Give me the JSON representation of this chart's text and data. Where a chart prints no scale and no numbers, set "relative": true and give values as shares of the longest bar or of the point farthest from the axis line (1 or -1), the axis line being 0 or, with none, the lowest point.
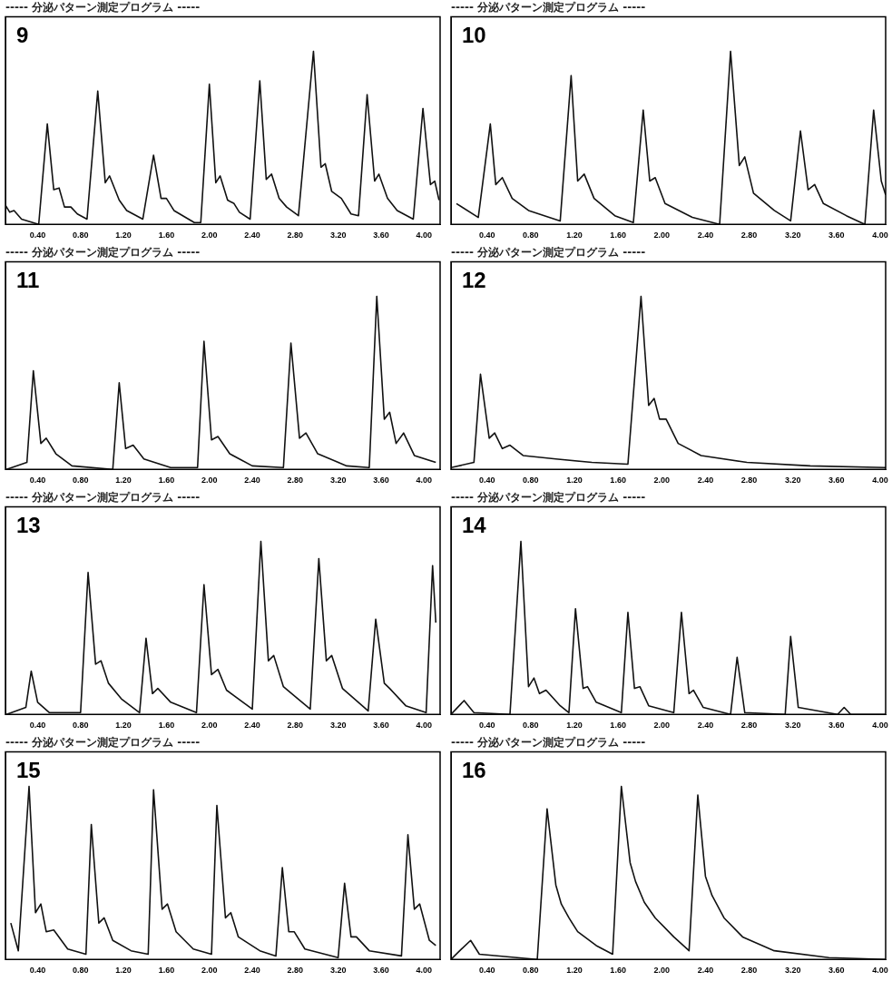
{
  "chart_data": [
    {
      "type": "line",
      "title": "----- 分泌パターン測定プログラム -----",
      "annotations": [
        "9"
      ],
      "relative": true,
      "grid": false,
      "legend": false,
      "marker": "none",
      "line_style": "solid",
      "tick_labels": "x",
      "xlim": [
        0.1,
        4.15
      ],
      "xticks": [
        {
          "value": 0.4,
          "label": "0.40"
        },
        {
          "value": 0.8,
          "label": "0.80"
        },
        {
          "value": 1.2,
          "label": "1.20"
        },
        {
          "value": 1.6,
          "label": "1.60"
        },
        {
          "value": 2,
          "label": "2.00"
        },
        {
          "value": 2.4,
          "label": "2.40"
        },
        {
          "value": 2.8,
          "label": "2.80"
        },
        {
          "value": 3.2,
          "label": "3.20"
        },
        {
          "value": 3.6,
          "label": "3.60"
        },
        {
          "value": 4,
          "label": "4.00"
        }
      ],
      "series": [
        {
          "color": "#111111",
          "x": [
            0.1,
            0.14,
            0.18,
            0.25,
            0.41,
            0.49,
            0.55,
            0.6,
            0.65,
            0.71,
            0.77,
            0.86,
            0.96,
            1.03,
            1.07,
            1.16,
            1.23,
            1.38,
            1.48,
            1.55,
            1.6,
            1.67,
            1.86,
            1.92,
            2,
            2.06,
            2.1,
            2.17,
            2.23,
            2.28,
            2.38,
            2.47,
            2.53,
            2.58,
            2.65,
            2.72,
            2.83,
            2.97,
            3.04,
            3.08,
            3.14,
            3.23,
            3.32,
            3.39,
            3.47,
            3.54,
            3.58,
            3.66,
            3.75,
            3.9,
            3.99,
            4.06,
            4.1,
            4.14
          ],
          "values": [
            0.11,
            0.07,
            0.08,
            0.03,
            0,
            0.58,
            0.2,
            0.21,
            0.1,
            0.1,
            0.06,
            0.03,
            0.77,
            0.24,
            0.28,
            0.14,
            0.08,
            0.03,
            0.4,
            0.15,
            0.15,
            0.08,
            0.01,
            0.01,
            0.81,
            0.24,
            0.28,
            0.14,
            0.12,
            0.07,
            0.03,
            0.83,
            0.26,
            0.29,
            0.15,
            0.1,
            0.05,
            1,
            0.33,
            0.35,
            0.19,
            0.15,
            0.06,
            0.05,
            0.75,
            0.25,
            0.29,
            0.15,
            0.08,
            0.03,
            0.67,
            0.23,
            0.25,
            0.14
          ]
        }
      ]
    },
    {
      "type": "line",
      "title": "----- 分泌パターン測定プログラム -----",
      "annotations": [
        "10"
      ],
      "relative": true,
      "grid": false,
      "legend": false,
      "marker": "none",
      "line_style": "solid",
      "tick_labels": "x",
      "xlim": [
        0.07,
        4.05
      ],
      "xticks": [
        {
          "value": 0.4,
          "label": "0.40"
        },
        {
          "value": 0.8,
          "label": "0.80"
        },
        {
          "value": 1.2,
          "label": "1.20"
        },
        {
          "value": 1.6,
          "label": "1.60"
        },
        {
          "value": 2,
          "label": "2.00"
        },
        {
          "value": 2.4,
          "label": "2.40"
        },
        {
          "value": 2.8,
          "label": "2.80"
        },
        {
          "value": 3.2,
          "label": "3.20"
        },
        {
          "value": 3.6,
          "label": "3.60"
        },
        {
          "value": 4,
          "label": "4.00"
        }
      ],
      "series": [
        {
          "color": "#111111",
          "x": [
            0.12,
            0.32,
            0.43,
            0.48,
            0.54,
            0.63,
            0.78,
            1.07,
            1.17,
            1.23,
            1.29,
            1.38,
            1.57,
            1.74,
            1.83,
            1.89,
            1.94,
            2.03,
            2.28,
            2.53,
            2.63,
            2.71,
            2.76,
            2.84,
            3.03,
            3.18,
            3.27,
            3.34,
            3.4,
            3.48,
            3.69,
            3.86,
            3.94,
            4.01,
            4.05
          ],
          "values": [
            0.12,
            0.04,
            0.58,
            0.23,
            0.27,
            0.15,
            0.08,
            0.02,
            0.86,
            0.25,
            0.29,
            0.15,
            0.05,
            0.01,
            0.66,
            0.25,
            0.27,
            0.12,
            0.04,
            0,
            1,
            0.34,
            0.39,
            0.18,
            0.08,
            0.02,
            0.54,
            0.2,
            0.23,
            0.12,
            0.05,
            0,
            0.66,
            0.25,
            0.17
          ]
        }
      ]
    },
    {
      "type": "line",
      "title": "----- 分泌パターン測定プログラム -----",
      "annotations": [
        "11"
      ],
      "relative": true,
      "grid": false,
      "legend": false,
      "marker": "none",
      "line_style": "solid",
      "tick_labels": "x",
      "xlim": [
        0.1,
        4.15
      ],
      "xticks": [
        {
          "value": 0.4,
          "label": "0.40"
        },
        {
          "value": 0.8,
          "label": "0.80"
        },
        {
          "value": 1.2,
          "label": "1.20"
        },
        {
          "value": 1.6,
          "label": "1.60"
        },
        {
          "value": 2,
          "label": "2.00"
        },
        {
          "value": 2.4,
          "label": "2.40"
        },
        {
          "value": 2.8,
          "label": "2.80"
        },
        {
          "value": 3.2,
          "label": "3.20"
        },
        {
          "value": 3.6,
          "label": "3.60"
        },
        {
          "value": 4,
          "label": "4.00"
        }
      ],
      "series": [
        {
          "color": "#111111",
          "x": [
            0.11,
            0.3,
            0.36,
            0.43,
            0.48,
            0.57,
            0.72,
            1.1,
            1.16,
            1.22,
            1.29,
            1.39,
            1.64,
            1.89,
            1.95,
            2.02,
            2.08,
            2.19,
            2.4,
            2.69,
            2.76,
            2.84,
            2.9,
            3.01,
            3.28,
            3.49,
            3.56,
            3.63,
            3.68,
            3.74,
            3.81,
            3.91,
            4.11
          ],
          "values": [
            0,
            0.04,
            0.57,
            0.15,
            0.18,
            0.09,
            0.02,
            0,
            0.5,
            0.12,
            0.14,
            0.06,
            0.01,
            0.01,
            0.74,
            0.17,
            0.19,
            0.09,
            0.02,
            0.01,
            0.73,
            0.18,
            0.21,
            0.09,
            0.02,
            0.01,
            1,
            0.29,
            0.33,
            0.15,
            0.21,
            0.08,
            0.04
          ]
        }
      ]
    },
    {
      "type": "line",
      "title": "----- 分泌パターン測定プログラム -----",
      "annotations": [
        "12"
      ],
      "relative": true,
      "grid": false,
      "legend": false,
      "marker": "none",
      "line_style": "solid",
      "tick_labels": "x",
      "xlim": [
        0.07,
        4.05
      ],
      "xticks": [
        {
          "value": 0.4,
          "label": "0.40"
        },
        {
          "value": 0.8,
          "label": "0.80"
        },
        {
          "value": 1.2,
          "label": "1.20"
        },
        {
          "value": 1.6,
          "label": "1.60"
        },
        {
          "value": 2,
          "label": "2.00"
        },
        {
          "value": 2.4,
          "label": "2.40"
        },
        {
          "value": 2.8,
          "label": "2.80"
        },
        {
          "value": 3.2,
          "label": "3.20"
        },
        {
          "value": 3.6,
          "label": "3.60"
        },
        {
          "value": 4,
          "label": "4.00"
        }
      ],
      "series": [
        {
          "color": "#111111",
          "x": [
            0.07,
            0.28,
            0.34,
            0.42,
            0.47,
            0.54,
            0.61,
            0.73,
            1.03,
            1.36,
            1.69,
            1.81,
            1.88,
            1.93,
            1.98,
            2.04,
            2.15,
            2.36,
            2.78,
            3.36,
            4.05
          ],
          "values": [
            0.01,
            0.04,
            0.55,
            0.18,
            0.21,
            0.12,
            0.14,
            0.08,
            0.06,
            0.04,
            0.03,
            1,
            0.37,
            0.41,
            0.29,
            0.29,
            0.15,
            0.08,
            0.04,
            0.02,
            0.01
          ]
        }
      ]
    },
    {
      "type": "line",
      "title": "----- 分泌パターン測定プログラム -----",
      "annotations": [
        "13"
      ],
      "relative": true,
      "grid": false,
      "legend": false,
      "marker": "none",
      "line_style": "solid",
      "tick_labels": "x",
      "xlim": [
        0.1,
        4.15
      ],
      "xticks": [
        {
          "value": 0.4,
          "label": "0.40"
        },
        {
          "value": 0.8,
          "label": "0.80"
        },
        {
          "value": 1.2,
          "label": "1.20"
        },
        {
          "value": 1.6,
          "label": "1.60"
        },
        {
          "value": 2,
          "label": "2.00"
        },
        {
          "value": 2.4,
          "label": "2.40"
        },
        {
          "value": 2.8,
          "label": "2.80"
        },
        {
          "value": 3.2,
          "label": "3.20"
        },
        {
          "value": 3.6,
          "label": "3.60"
        },
        {
          "value": 4,
          "label": "4.00"
        }
      ],
      "series": [
        {
          "color": "#111111",
          "x": [
            0.11,
            0.29,
            0.34,
            0.4,
            0.51,
            0.8,
            0.87,
            0.94,
            0.99,
            1.06,
            1.18,
            1.35,
            1.41,
            1.47,
            1.52,
            1.64,
            1.88,
            1.95,
            2.02,
            2.08,
            2.16,
            2.4,
            2.48,
            2.55,
            2.6,
            2.69,
            2.94,
            3.02,
            3.09,
            3.14,
            3.24,
            3.48,
            3.55,
            3.63,
            3.68,
            3.83,
            4.02,
            4.08,
            4.11
          ],
          "values": [
            0,
            0.04,
            0.25,
            0.07,
            0.01,
            0.01,
            0.82,
            0.29,
            0.31,
            0.18,
            0.09,
            0.01,
            0.44,
            0.12,
            0.15,
            0.07,
            0.01,
            0.75,
            0.23,
            0.26,
            0.14,
            0.03,
            1,
            0.31,
            0.34,
            0.16,
            0.03,
            0.9,
            0.31,
            0.34,
            0.15,
            0.02,
            0.55,
            0.18,
            0.15,
            0.05,
            0.01,
            0.86,
            0.53
          ]
        }
      ]
    },
    {
      "type": "line",
      "title": "----- 分泌パターン測定プログラム -----",
      "annotations": [
        "14"
      ],
      "relative": true,
      "grid": false,
      "legend": false,
      "marker": "none",
      "line_style": "solid",
      "tick_labels": "x",
      "xlim": [
        0.07,
        4.05
      ],
      "xticks": [
        {
          "value": 0.4,
          "label": "0.40"
        },
        {
          "value": 0.8,
          "label": "0.80"
        },
        {
          "value": 1.2,
          "label": "1.20"
        },
        {
          "value": 1.6,
          "label": "1.60"
        },
        {
          "value": 2,
          "label": "2.00"
        },
        {
          "value": 2.4,
          "label": "2.40"
        },
        {
          "value": 2.8,
          "label": "2.80"
        },
        {
          "value": 3.2,
          "label": "3.20"
        },
        {
          "value": 3.6,
          "label": "3.60"
        },
        {
          "value": 4,
          "label": "4.00"
        }
      ],
      "series": [
        {
          "color": "#111111",
          "x": [
            0.07,
            0.19,
            0.28,
            0.61,
            0.71,
            0.78,
            0.83,
            0.88,
            0.94,
            1.07,
            1.15,
            1.21,
            1.28,
            1.32,
            1.4,
            1.63,
            1.69,
            1.75,
            1.8,
            1.88,
            2.11,
            2.18,
            2.25,
            2.29,
            2.38,
            2.63,
            2.69,
            2.76,
            3.13,
            3.18,
            3.25,
            3.61,
            3.67,
            3.73,
            4.05
          ],
          "values": [
            0,
            0.08,
            0.01,
            0,
            1,
            0.16,
            0.21,
            0.12,
            0.14,
            0.05,
            0.01,
            0.61,
            0.15,
            0.16,
            0.07,
            0.01,
            0.59,
            0.15,
            0.16,
            0.05,
            0.01,
            0.59,
            0.12,
            0.14,
            0.04,
            0,
            0.33,
            0.01,
            0,
            0.45,
            0.04,
            0,
            0.04,
            0,
            0
          ]
        }
      ]
    },
    {
      "type": "line",
      "title": "----- 分泌パターン測定プログラム -----",
      "annotations": [
        "15"
      ],
      "relative": true,
      "grid": false,
      "legend": false,
      "marker": "none",
      "line_style": "solid",
      "tick_labels": "x",
      "xlim": [
        0.1,
        4.15
      ],
      "xticks": [
        {
          "value": 0.4,
          "label": "0.40"
        },
        {
          "value": 0.8,
          "label": "0.80"
        },
        {
          "value": 1.2,
          "label": "1.20"
        },
        {
          "value": 1.6,
          "label": "1.60"
        },
        {
          "value": 2,
          "label": "2.00"
        },
        {
          "value": 2.4,
          "label": "2.40"
        },
        {
          "value": 2.8,
          "label": "2.80"
        },
        {
          "value": 3.2,
          "label": "3.20"
        },
        {
          "value": 3.6,
          "label": "3.60"
        },
        {
          "value": 4,
          "label": "4.00"
        }
      ],
      "series": [
        {
          "color": "#111111",
          "x": [
            0.15,
            0.22,
            0.32,
            0.38,
            0.43,
            0.48,
            0.55,
            0.68,
            0.85,
            0.9,
            0.97,
            1.02,
            1.1,
            1.27,
            1.43,
            1.48,
            1.56,
            1.61,
            1.69,
            1.85,
            2.02,
            2.07,
            2.15,
            2.2,
            2.27,
            2.47,
            2.62,
            2.68,
            2.74,
            2.79,
            2.89,
            3.2,
            3.26,
            3.32,
            3.37,
            3.49,
            3.79,
            3.85,
            3.91,
            3.96,
            4.05,
            4.11
          ],
          "values": [
            0.21,
            0.05,
            1,
            0.27,
            0.32,
            0.16,
            0.17,
            0.06,
            0.03,
            0.78,
            0.21,
            0.24,
            0.11,
            0.05,
            0.03,
            0.98,
            0.29,
            0.32,
            0.16,
            0.06,
            0.03,
            0.89,
            0.24,
            0.27,
            0.13,
            0.05,
            0.02,
            0.53,
            0.16,
            0.16,
            0.06,
            0.01,
            0.44,
            0.13,
            0.13,
            0.05,
            0.02,
            0.72,
            0.29,
            0.32,
            0.11,
            0.08
          ]
        }
      ]
    },
    {
      "type": "line",
      "title": "----- 分泌パターン測定プログラム -----",
      "annotations": [
        "16"
      ],
      "relative": true,
      "grid": false,
      "legend": false,
      "marker": "none",
      "line_style": "solid",
      "tick_labels": "x",
      "xlim": [
        0.07,
        4.05
      ],
      "xticks": [
        {
          "value": 0.4,
          "label": "0.40"
        },
        {
          "value": 0.8,
          "label": "0.80"
        },
        {
          "value": 1.2,
          "label": "1.20"
        },
        {
          "value": 1.6,
          "label": "1.60"
        },
        {
          "value": 2,
          "label": "2.00"
        },
        {
          "value": 2.4,
          "label": "2.40"
        },
        {
          "value": 2.8,
          "label": "2.80"
        },
        {
          "value": 3.2,
          "label": "3.20"
        },
        {
          "value": 3.6,
          "label": "3.60"
        },
        {
          "value": 4,
          "label": "4.00"
        }
      ],
      "series": [
        {
          "color": "#111111",
          "x": [
            0.07,
            0.15,
            0.25,
            0.33,
            0.86,
            0.95,
            1.03,
            1.08,
            1.15,
            1.23,
            1.4,
            1.55,
            1.63,
            1.71,
            1.76,
            1.84,
            1.94,
            2.11,
            2.25,
            2.33,
            2.4,
            2.46,
            2.57,
            2.74,
            3.03,
            3.53,
            4.05
          ],
          "values": [
            0,
            0.05,
            0.11,
            0.03,
            0,
            0.87,
            0.43,
            0.32,
            0.24,
            0.16,
            0.08,
            0.03,
            1,
            0.56,
            0.45,
            0.33,
            0.24,
            0.13,
            0.05,
            0.95,
            0.48,
            0.37,
            0.24,
            0.13,
            0.05,
            0.01,
            0
          ]
        }
      ]
    }
  ]
}
